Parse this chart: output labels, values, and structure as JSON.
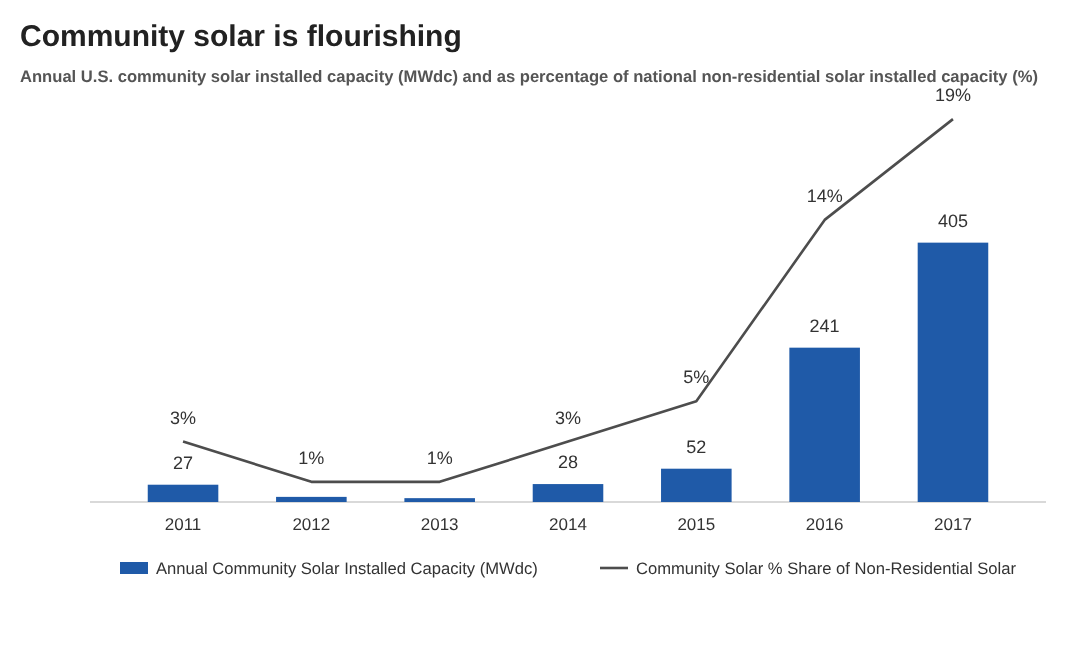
{
  "chart_data": {
    "type": "bar",
    "title": "Community solar is flourishing",
    "subtitle": "Annual U.S. community solar installed capacity (MWdc) and as percentage of national non-residential solar installed capacity (%)",
    "categories": [
      "2011",
      "2012",
      "2013",
      "2014",
      "2015",
      "2016",
      "2017"
    ],
    "series": [
      {
        "name": "Annual Community Solar Installed Capacity (MWdc)",
        "color": "#1f5aa8",
        "values": [
          27,
          8,
          6,
          28,
          52,
          241,
          405
        ],
        "value_labels": [
          "27",
          null,
          null,
          "28",
          "52",
          "241",
          "405"
        ]
      },
      {
        "type": "line",
        "axis": "y2",
        "name": "Community Solar % Share of Non-Residential Solar",
        "color": "#4d4d4d",
        "values": [
          3,
          1,
          1,
          3,
          5,
          14,
          19
        ],
        "value_labels": [
          "3%",
          "1%",
          "1%",
          "3%",
          "5%",
          "14%",
          "19%"
        ]
      }
    ],
    "legend": "bottom",
    "marker": "none",
    "line_style": "solid"
  }
}
